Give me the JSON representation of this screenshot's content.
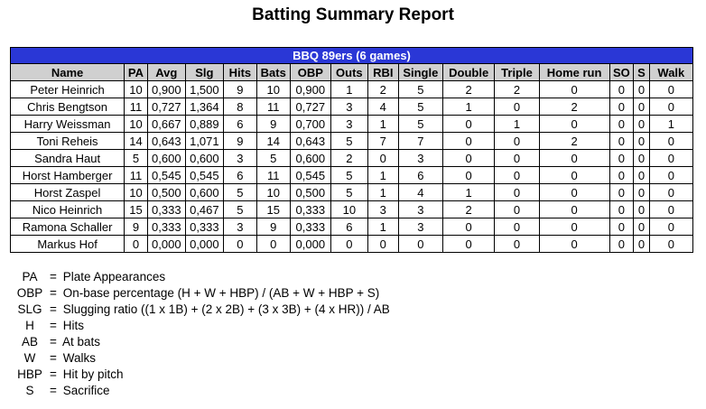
{
  "report_title": "Batting Summary Report",
  "team_header": "BBQ 89ers (6 games)",
  "columns": [
    "Name",
    "PA",
    "Avg",
    "Slg",
    "Hits",
    "Bats",
    "OBP",
    "Outs",
    "RBI",
    "Single",
    "Double",
    "Triple",
    "Home run",
    "SO",
    "S",
    "Walk"
  ],
  "rows": [
    [
      "Peter Heinrich",
      "10",
      "0,900",
      "1,500",
      "9",
      "10",
      "0,900",
      "1",
      "2",
      "5",
      "2",
      "2",
      "0",
      "0",
      "0",
      "0"
    ],
    [
      "Chris Bengtson",
      "11",
      "0,727",
      "1,364",
      "8",
      "11",
      "0,727",
      "3",
      "4",
      "5",
      "1",
      "0",
      "2",
      "0",
      "0",
      "0"
    ],
    [
      "Harry Weissman",
      "10",
      "0,667",
      "0,889",
      "6",
      "9",
      "0,700",
      "3",
      "1",
      "5",
      "0",
      "1",
      "0",
      "0",
      "0",
      "1"
    ],
    [
      "Toni Reheis",
      "14",
      "0,643",
      "1,071",
      "9",
      "14",
      "0,643",
      "5",
      "7",
      "7",
      "0",
      "0",
      "2",
      "0",
      "0",
      "0"
    ],
    [
      "Sandra Haut",
      "5",
      "0,600",
      "0,600",
      "3",
      "5",
      "0,600",
      "2",
      "0",
      "3",
      "0",
      "0",
      "0",
      "0",
      "0",
      "0"
    ],
    [
      "Horst Hamberger",
      "11",
      "0,545",
      "0,545",
      "6",
      "11",
      "0,545",
      "5",
      "1",
      "6",
      "0",
      "0",
      "0",
      "0",
      "0",
      "0"
    ],
    [
      "Horst Zaspel",
      "10",
      "0,500",
      "0,600",
      "5",
      "10",
      "0,500",
      "5",
      "1",
      "4",
      "1",
      "0",
      "0",
      "0",
      "0",
      "0"
    ],
    [
      "Nico Heinrich",
      "15",
      "0,333",
      "0,467",
      "5",
      "15",
      "0,333",
      "10",
      "3",
      "3",
      "2",
      "0",
      "0",
      "0",
      "0",
      "0"
    ],
    [
      "Ramona Schaller",
      "9",
      "0,333",
      "0,333",
      "3",
      "9",
      "0,333",
      "6",
      "1",
      "3",
      "0",
      "0",
      "0",
      "0",
      "0",
      "0"
    ],
    [
      "Markus Hof",
      "0",
      "0,000",
      "0,000",
      "0",
      "0",
      "0,000",
      "0",
      "0",
      "0",
      "0",
      "0",
      "0",
      "0",
      "0",
      "0"
    ]
  ],
  "legend": [
    {
      "abbr": "PA",
      "text": "Plate Appearances"
    },
    {
      "abbr": "OBP",
      "text": "On-base percentage (H + W + HBP) / (AB + W + HBP + S)"
    },
    {
      "abbr": "SLG",
      "text": "Slugging ratio ((1 x 1B) + (2 x 2B) + (3 x 3B) + (4 x HR)) / AB"
    },
    {
      "abbr": "H",
      "text": "Hits"
    },
    {
      "abbr": "AB",
      "text": "At bats"
    },
    {
      "abbr": "W",
      "text": "Walks"
    },
    {
      "abbr": "HBP",
      "text": "Hit by pitch"
    },
    {
      "abbr": "S",
      "text": "Sacrifice"
    }
  ],
  "equals_sign": "="
}
